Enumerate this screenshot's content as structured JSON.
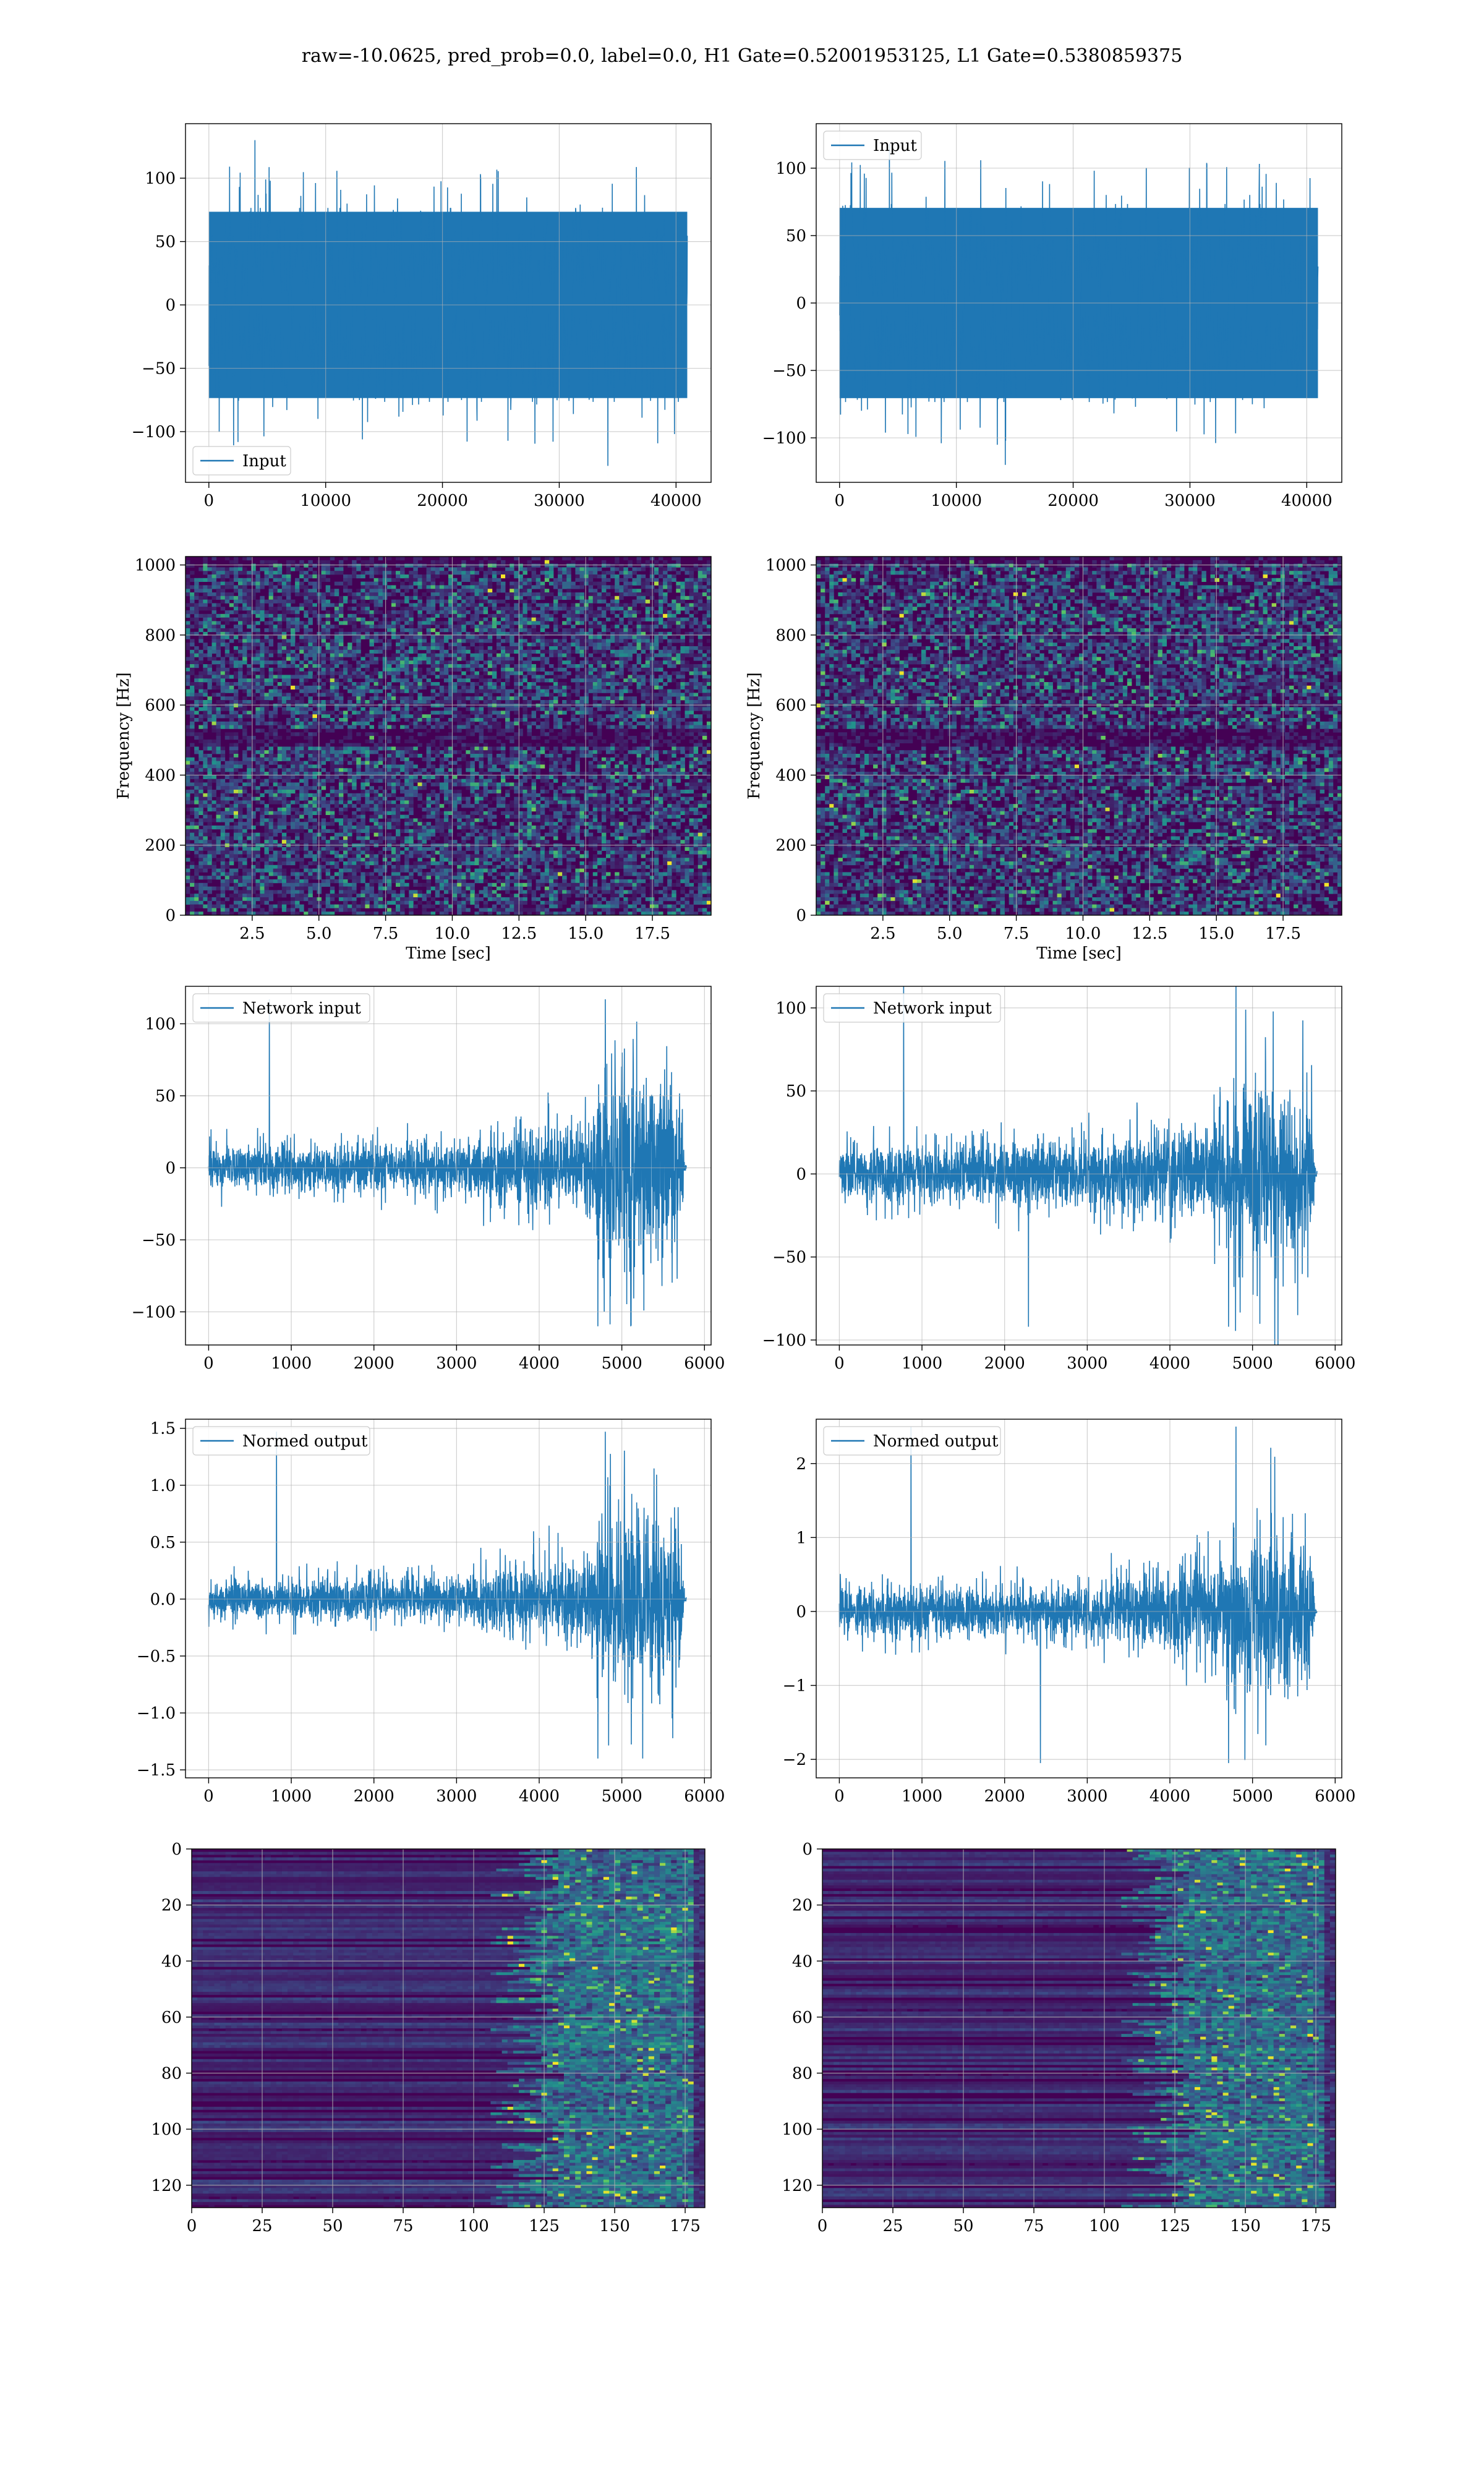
{
  "figure": {
    "suptitle": "raw=-10.0625, pred_prob=0.0, label=0.0, H1 Gate=0.52001953125, L1 Gate=0.5380859375"
  },
  "colors": {
    "line": "#1f77b4",
    "grid": "#b0b0b0",
    "viridis_dark": "#440154",
    "viridis_blue": "#3b528b",
    "viridis_teal": "#21918c",
    "viridis_green": "#5ec962",
    "viridis_yellow": "#fde725"
  },
  "chart_data": [
    {
      "id": "input_h1",
      "type": "line",
      "title": "",
      "xlabel": "",
      "ylabel": "",
      "xlim": [
        -2000,
        43000
      ],
      "ylim": [
        -140,
        143
      ],
      "xticks": [
        0,
        10000,
        20000,
        30000,
        40000
      ],
      "yticks": [
        -100,
        -50,
        0,
        50,
        100
      ],
      "legend": {
        "label": "Input",
        "loc": "lower left"
      },
      "series": [
        {
          "name": "Input",
          "x_range": [
            0,
            40960
          ],
          "band": [
            -75,
            75
          ],
          "peak_range": [
            -127,
            130
          ]
        }
      ],
      "grid": true
    },
    {
      "id": "input_l1",
      "type": "line",
      "title": "",
      "xlabel": "",
      "ylabel": "",
      "xlim": [
        -2000,
        43000
      ],
      "ylim": [
        -133,
        133
      ],
      "xticks": [
        0,
        10000,
        20000,
        30000,
        40000
      ],
      "yticks": [
        -100,
        -50,
        0,
        50,
        100
      ],
      "legend": {
        "label": "Input",
        "loc": "upper left"
      },
      "series": [
        {
          "name": "Input",
          "x_range": [
            0,
            40960
          ],
          "band": [
            -72,
            72
          ],
          "peak_range": [
            -120,
            118
          ]
        }
      ],
      "grid": true
    },
    {
      "id": "spec_h1",
      "type": "heatmap",
      "title": "",
      "xlabel": "Time [sec]",
      "ylabel": "Frequency [Hz]",
      "xlim": [
        0,
        19.7
      ],
      "ylim": [
        0,
        1024
      ],
      "xticks": [
        2.5,
        5.0,
        7.5,
        10.0,
        12.5,
        15.0,
        17.5
      ],
      "yticks": [
        0,
        200,
        400,
        600,
        800,
        1000
      ],
      "colormap": "viridis",
      "grid": true
    },
    {
      "id": "spec_l1",
      "type": "heatmap",
      "title": "",
      "xlabel": "Time [sec]",
      "ylabel": "Frequency [Hz]",
      "xlim": [
        0,
        19.7
      ],
      "ylim": [
        0,
        1024
      ],
      "xticks": [
        2.5,
        5.0,
        7.5,
        10.0,
        12.5,
        15.0,
        17.5
      ],
      "yticks": [
        0,
        200,
        400,
        600,
        800,
        1000
      ],
      "colormap": "viridis",
      "grid": true
    },
    {
      "id": "net_h1",
      "type": "line",
      "title": "",
      "xlabel": "",
      "ylabel": "",
      "xlim": [
        -280,
        6080
      ],
      "ylim": [
        -123,
        126
      ],
      "xticks": [
        0,
        1000,
        2000,
        3000,
        4000,
        5000,
        6000
      ],
      "yticks": [
        -100,
        -50,
        0,
        50,
        100
      ],
      "legend": {
        "label": "Network input",
        "loc": "upper left"
      },
      "series": [
        {
          "name": "Network input",
          "x_range": [
            0,
            5780
          ],
          "profile": [
            [
              0,
              18
            ],
            [
              3000,
              22
            ],
            [
              3400,
              30
            ],
            [
              4650,
              40
            ],
            [
              4700,
              70
            ],
            [
              5150,
              90
            ],
            [
              5700,
              70
            ],
            [
              5760,
              3
            ]
          ],
          "peak_range": [
            -110,
            117
          ]
        }
      ],
      "grid": true
    },
    {
      "id": "net_l1",
      "type": "line",
      "title": "",
      "xlabel": "",
      "ylabel": "",
      "xlim": [
        -280,
        6080
      ],
      "ylim": [
        -103,
        113
      ],
      "xticks": [
        0,
        1000,
        2000,
        3000,
        4000,
        5000,
        6000
      ],
      "yticks": [
        -100,
        -50,
        0,
        50,
        100
      ],
      "legend": {
        "label": "Network input",
        "loc": "upper left"
      },
      "series": [
        {
          "name": "Network input",
          "x_range": [
            0,
            5780
          ],
          "profile": [
            [
              0,
              20
            ],
            [
              3000,
              25
            ],
            [
              3500,
              32
            ],
            [
              4650,
              40
            ],
            [
              4700,
              65
            ],
            [
              5150,
              75
            ],
            [
              5700,
              65
            ],
            [
              5760,
              3
            ]
          ],
          "peak_range": [
            -92,
            113
          ]
        }
      ],
      "grid": true
    },
    {
      "id": "norm_h1",
      "type": "line",
      "title": "",
      "xlabel": "",
      "ylabel": "",
      "xlim": [
        -280,
        6080
      ],
      "ylim": [
        -1.57,
        1.58
      ],
      "xticks": [
        0,
        1000,
        2000,
        3000,
        4000,
        5000,
        6000
      ],
      "yticks": [
        -1.5,
        -1.0,
        -0.5,
        0.0,
        0.5,
        1.0,
        1.5
      ],
      "legend": {
        "label": "Normed output",
        "loc": "upper left"
      },
      "series": [
        {
          "name": "Normed output",
          "x_range": [
            0,
            5780
          ],
          "profile": [
            [
              0,
              0.2
            ],
            [
              3000,
              0.25
            ],
            [
              3400,
              0.35
            ],
            [
              4650,
              0.5
            ],
            [
              4700,
              0.8
            ],
            [
              5150,
              1.1
            ],
            [
              5700,
              0.8
            ],
            [
              5760,
              0.04
            ]
          ],
          "peak_range": [
            -1.4,
            1.47
          ]
        }
      ],
      "grid": true
    },
    {
      "id": "norm_l1",
      "type": "line",
      "title": "",
      "xlabel": "",
      "ylabel": "",
      "xlim": [
        -280,
        6080
      ],
      "ylim": [
        -2.25,
        2.6
      ],
      "xticks": [
        0,
        1000,
        2000,
        3000,
        4000,
        5000,
        6000
      ],
      "yticks": [
        -2,
        -1,
        0,
        1,
        2
      ],
      "legend": {
        "label": "Normed output",
        "loc": "upper left"
      },
      "series": [
        {
          "name": "Normed output",
          "x_range": [
            0,
            5780
          ],
          "profile": [
            [
              0,
              0.4
            ],
            [
              3000,
              0.45
            ],
            [
              3500,
              0.6
            ],
            [
              4650,
              0.8
            ],
            [
              4700,
              1.3
            ],
            [
              5150,
              1.6
            ],
            [
              5700,
              1.3
            ],
            [
              5760,
              0.05
            ]
          ],
          "peak_range": [
            -2.05,
            2.5
          ]
        }
      ],
      "grid": true
    },
    {
      "id": "act_h1",
      "type": "heatmap",
      "title": "",
      "xlabel": "",
      "ylabel": "",
      "xlim": [
        0,
        182
      ],
      "ylim": [
        128,
        0
      ],
      "xticks": [
        0,
        25,
        50,
        75,
        100,
        125,
        150,
        175
      ],
      "yticks": [
        0,
        20,
        40,
        60,
        80,
        100,
        120
      ],
      "colormap": "viridis",
      "grid": true
    },
    {
      "id": "act_l1",
      "type": "heatmap",
      "title": "",
      "xlabel": "",
      "ylabel": "",
      "xlim": [
        0,
        182
      ],
      "ylim": [
        128,
        0
      ],
      "xticks": [
        0,
        25,
        50,
        75,
        100,
        125,
        150,
        175
      ],
      "yticks": [
        0,
        20,
        40,
        60,
        80,
        100,
        120
      ],
      "colormap": "viridis",
      "grid": true
    }
  ]
}
